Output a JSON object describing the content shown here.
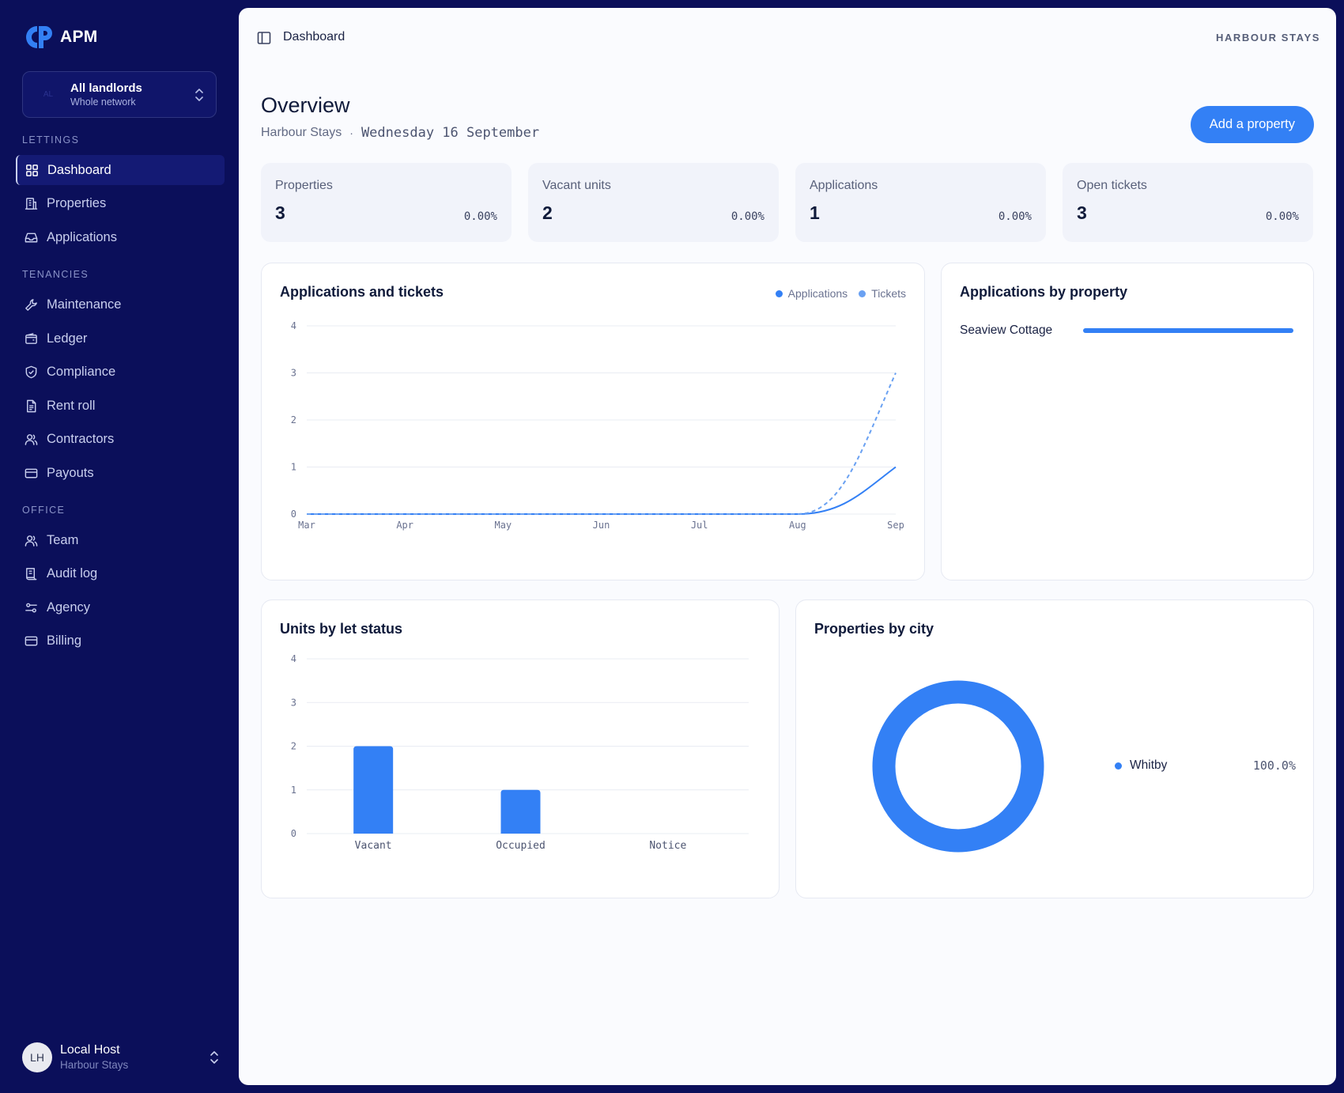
{
  "brand": {
    "name": "APM"
  },
  "switcher": {
    "avatar": "AL",
    "title": "All landlords",
    "subtitle": "Whole network"
  },
  "sidebar": {
    "sections": [
      {
        "label": "LETTINGS",
        "items": [
          {
            "label": "Dashboard",
            "icon": "grid-icon",
            "active": true
          },
          {
            "label": "Properties",
            "icon": "building-icon"
          },
          {
            "label": "Applications",
            "icon": "inbox-icon"
          }
        ]
      },
      {
        "label": "TENANCIES",
        "items": [
          {
            "label": "Maintenance",
            "icon": "wrench-icon"
          },
          {
            "label": "Ledger",
            "icon": "wallet-icon"
          },
          {
            "label": "Compliance",
            "icon": "shield-icon"
          },
          {
            "label": "Rent roll",
            "icon": "document-icon"
          },
          {
            "label": "Contractors",
            "icon": "users-icon"
          },
          {
            "label": "Payouts",
            "icon": "card-icon"
          }
        ]
      },
      {
        "label": "OFFICE",
        "items": [
          {
            "label": "Team",
            "icon": "users-icon"
          },
          {
            "label": "Audit log",
            "icon": "scroll-icon"
          },
          {
            "label": "Agency",
            "icon": "sliders-icon"
          },
          {
            "label": "Billing",
            "icon": "card-icon"
          }
        ]
      }
    ]
  },
  "user": {
    "initials": "LH",
    "name": "Local Host",
    "org": "Harbour Stays"
  },
  "topbar": {
    "breadcrumb": "Dashboard",
    "org_brand": "HARBOUR STAYS"
  },
  "page": {
    "title": "Overview",
    "org": "Harbour Stays",
    "separator": "·",
    "date": "Wednesday 16 September",
    "primary_action": "Add a property"
  },
  "stats": [
    {
      "label": "Properties",
      "value": "3",
      "delta": "0.00%"
    },
    {
      "label": "Vacant units",
      "value": "2",
      "delta": "0.00%"
    },
    {
      "label": "Applications",
      "value": "1",
      "delta": "0.00%"
    },
    {
      "label": "Open tickets",
      "value": "3",
      "delta": "0.00%"
    }
  ],
  "colors": {
    "accent": "#3380f5",
    "tickets": "#5a94f0",
    "sidebar_bg": "#0b0f5a"
  },
  "cards": {
    "line": {
      "title": "Applications and tickets"
    },
    "by_property": {
      "title": "Applications by property"
    },
    "bar": {
      "title": "Units by let status"
    },
    "donut": {
      "title": "Properties by city"
    }
  },
  "chart_data": [
    {
      "type": "line",
      "title": "Applications and tickets",
      "x": [
        "Mar",
        "Apr",
        "May",
        "Jun",
        "Jul",
        "Aug",
        "Sep"
      ],
      "series": [
        {
          "name": "Applications",
          "values": [
            0,
            0,
            0,
            0,
            0,
            0,
            1
          ],
          "style": "solid"
        },
        {
          "name": "Tickets",
          "values": [
            0,
            0,
            0,
            0,
            0,
            0,
            3
          ],
          "style": "dashed"
        }
      ],
      "ylim": [
        0,
        4
      ],
      "yticks": [
        0,
        1,
        2,
        3,
        4
      ],
      "legend": "top-right",
      "grid": true
    },
    {
      "type": "bar",
      "orientation": "horizontal",
      "title": "Applications by property",
      "categories": [
        "Seaview Cottage"
      ],
      "values": [
        1
      ],
      "fraction_of_max": [
        1.0
      ]
    },
    {
      "type": "bar",
      "title": "Units by let status",
      "categories": [
        "Vacant",
        "Occupied",
        "Notice"
      ],
      "values": [
        2,
        1,
        0
      ],
      "ylim": [
        0,
        4
      ],
      "yticks": [
        0,
        1,
        2,
        3,
        4
      ],
      "grid": true
    },
    {
      "type": "pie",
      "style": "donut",
      "title": "Properties by city",
      "labels": [
        "Whitby"
      ],
      "values": [
        100.0
      ],
      "display": [
        "100.0%"
      ],
      "legend": "right"
    }
  ]
}
